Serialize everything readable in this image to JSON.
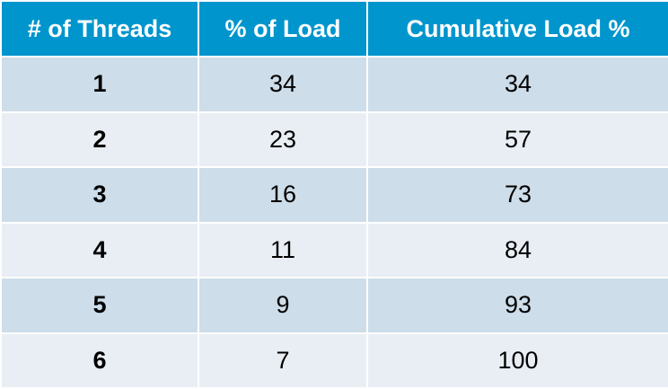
{
  "chart_data": {
    "type": "table",
    "columns": [
      "# of Threads",
      "% of Load",
      "Cumulative Load %"
    ],
    "rows": [
      [
        "1",
        "34",
        "34"
      ],
      [
        "2",
        "23",
        "57"
      ],
      [
        "3",
        "16",
        "73"
      ],
      [
        "4",
        "11",
        "84"
      ],
      [
        "5",
        "9",
        "93"
      ],
      [
        "6",
        "7",
        "100"
      ]
    ]
  },
  "colors": {
    "header": "#0095cc",
    "row_dark": "#cddde9",
    "row_light": "#e8eef4"
  }
}
